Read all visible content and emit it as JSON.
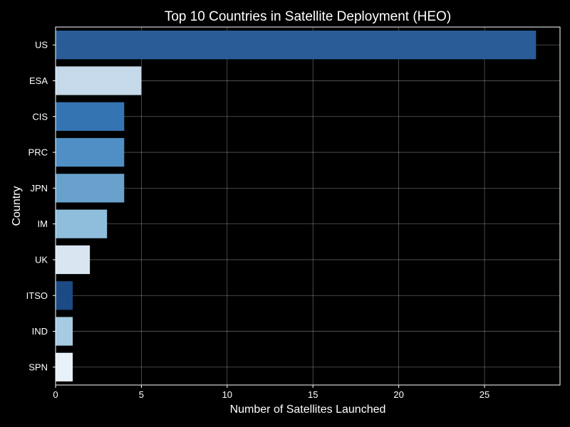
{
  "chart_data": {
    "type": "bar",
    "orientation": "horizontal",
    "title": "Top 10 Countries in Satellite Deployment (HEO)",
    "xlabel": "Number of Satellites Launched",
    "ylabel": "Country",
    "categories": [
      "US",
      "ESA",
      "CIS",
      "PRC",
      "JPN",
      "IM",
      "UK",
      "ITSO",
      "IND",
      "SPN"
    ],
    "values": [
      28,
      5,
      4,
      4,
      4,
      3,
      2,
      1,
      1,
      1
    ],
    "bar_colors": [
      "#2a5d98",
      "#c6d9ea",
      "#3574b3",
      "#4f8fc5",
      "#68a1cc",
      "#8ebedb",
      "#d9e6f2",
      "#1c4a84",
      "#a6cbe2",
      "#e8f0f8"
    ],
    "xlim": [
      0,
      29.4
    ],
    "xticks": [
      0,
      5,
      10,
      15,
      20,
      25
    ],
    "grid": true,
    "background": "#000000",
    "text_color": "#ffffff"
  }
}
